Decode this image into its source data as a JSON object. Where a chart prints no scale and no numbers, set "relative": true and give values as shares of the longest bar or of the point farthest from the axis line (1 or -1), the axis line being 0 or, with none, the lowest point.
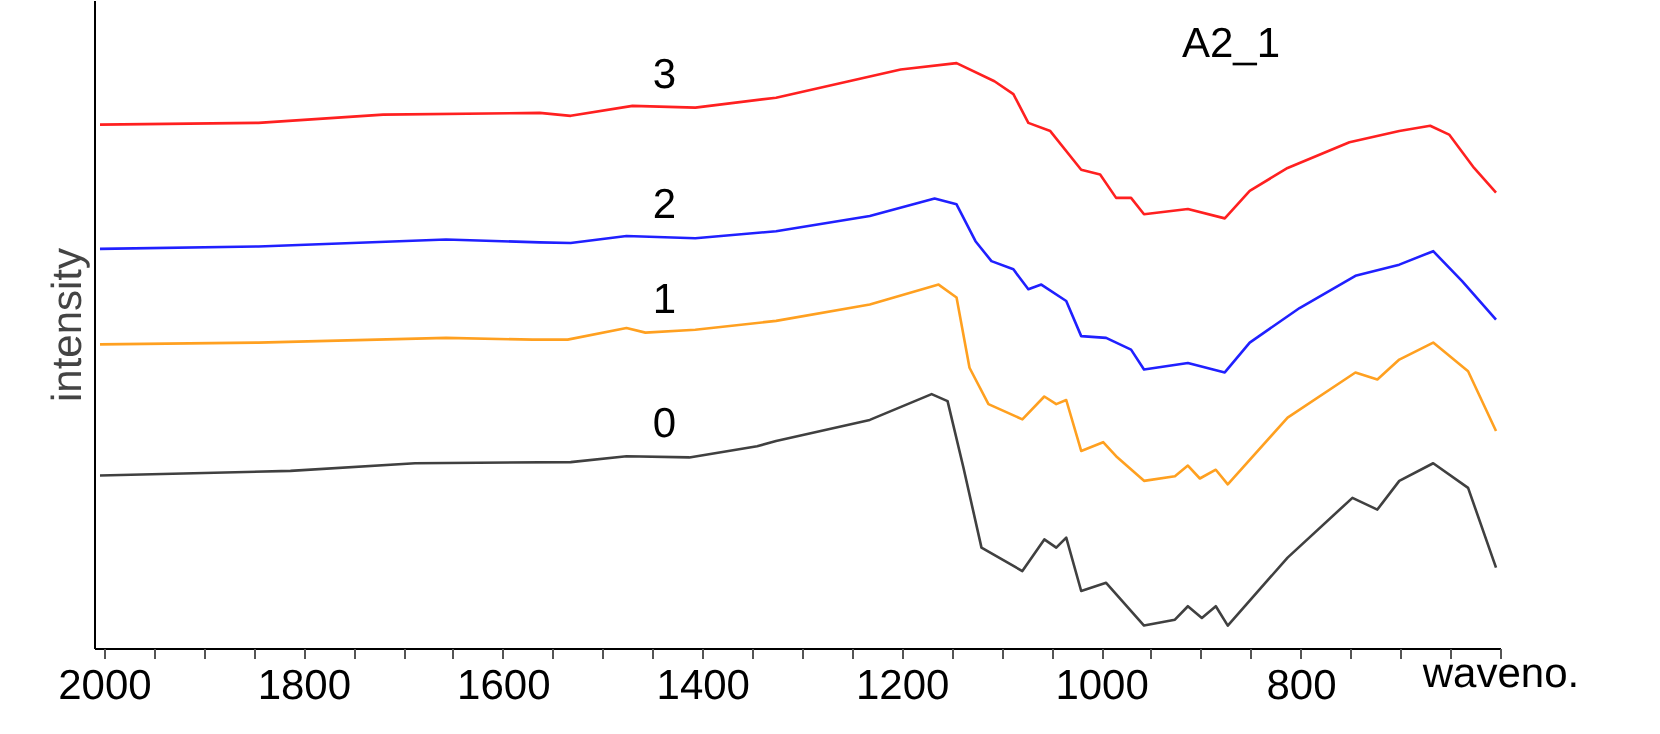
{
  "chart_data": {
    "type": "line",
    "relative": true,
    "ylabel": "intensity",
    "xlabel": "waveno.",
    "annotations": [
      "A2_1"
    ],
    "xlim": [
      2010,
      600
    ],
    "xticks": [
      2000,
      {
        "value": 1950,
        "label": null
      },
      {
        "value": 1900,
        "label": null
      },
      {
        "value": 1850,
        "label": null
      },
      1800,
      {
        "value": 1750,
        "label": null
      },
      {
        "value": 1700,
        "label": null
      },
      {
        "value": 1650,
        "label": null
      },
      1600,
      {
        "value": 1550,
        "label": null
      },
      {
        "value": 1500,
        "label": null
      },
      {
        "value": 1450,
        "label": null
      },
      1400,
      {
        "value": 1350,
        "label": null
      },
      {
        "value": 1300,
        "label": null
      },
      {
        "value": 1250,
        "label": null
      },
      1200,
      {
        "value": 1150,
        "label": null
      },
      {
        "value": 1100,
        "label": null
      },
      {
        "value": 1050,
        "label": null
      },
      1000,
      {
        "value": 950,
        "label": null
      },
      {
        "value": 900,
        "label": null
      },
      {
        "value": 850,
        "label": null
      },
      800,
      {
        "value": 750,
        "label": null
      },
      {
        "value": 700,
        "label": null
      },
      {
        "value": 650,
        "label": null
      },
      {
        "value": 600,
        "label": null
      }
    ],
    "grid": false,
    "legend": false,
    "series": [
      {
        "name": "3",
        "color": "#ff2020",
        "x": [
          2005,
          1846,
          1721,
          1564,
          1533,
          1471,
          1408,
          1327,
          1202,
          1146,
          1108,
          1089,
          1074,
          1052,
          1021,
          1002,
          986,
          971,
          958,
          914,
          877,
          852,
          814,
          752,
          702,
          671,
          652,
          627,
          605
        ],
        "values": [
          0.895,
          0.898,
          0.912,
          0.915,
          0.91,
          0.927,
          0.924,
          0.941,
          0.989,
          1.0,
          0.969,
          0.947,
          0.898,
          0.884,
          0.818,
          0.81,
          0.77,
          0.77,
          0.742,
          0.751,
          0.735,
          0.782,
          0.821,
          0.865,
          0.884,
          0.893,
          0.878,
          0.821,
          0.779
        ]
      },
      {
        "name": "2",
        "color": "#2020ff",
        "x": [
          2005,
          1846,
          1658,
          1564,
          1533,
          1477,
          1408,
          1327,
          1233,
          1168,
          1146,
          1127,
          1111,
          1089,
          1074,
          1061,
          1036,
          1021,
          996,
          971,
          958,
          914,
          877,
          852,
          802,
          746,
          702,
          668,
          639,
          605
        ],
        "values": [
          0.683,
          0.687,
          0.699,
          0.694,
          0.693,
          0.705,
          0.701,
          0.713,
          0.739,
          0.769,
          0.759,
          0.696,
          0.662,
          0.648,
          0.614,
          0.622,
          0.594,
          0.534,
          0.531,
          0.511,
          0.477,
          0.488,
          0.472,
          0.523,
          0.582,
          0.637,
          0.656,
          0.679,
          0.628,
          0.562
        ]
      },
      {
        "name": "1",
        "color": "#ffa020",
        "x": [
          2005,
          1846,
          1658,
          1571,
          1536,
          1477,
          1458,
          1408,
          1327,
          1233,
          1164,
          1146,
          1133,
          1114,
          1080,
          1058,
          1046,
          1036,
          1021,
          999,
          986,
          958,
          927,
          914,
          902,
          886,
          874,
          814,
          746,
          724,
          702,
          668,
          633,
          605
        ],
        "values": [
          0.52,
          0.523,
          0.531,
          0.528,
          0.528,
          0.548,
          0.54,
          0.545,
          0.56,
          0.588,
          0.622,
          0.6,
          0.48,
          0.418,
          0.392,
          0.431,
          0.418,
          0.425,
          0.338,
          0.353,
          0.329,
          0.287,
          0.295,
          0.313,
          0.291,
          0.306,
          0.281,
          0.395,
          0.472,
          0.46,
          0.494,
          0.523,
          0.474,
          0.372
        ]
      },
      {
        "name": "0",
        "color": "#404040",
        "x": [
          2005,
          1814,
          1689,
          1533,
          1477,
          1414,
          1346,
          1327,
          1233,
          1171,
          1155,
          1139,
          1121,
          1080,
          1058,
          1046,
          1036,
          1021,
          996,
          958,
          927,
          914,
          900,
          886,
          874,
          814,
          749,
          724,
          702,
          668,
          633,
          605
        ],
        "values": [
          0.296,
          0.304,
          0.317,
          0.319,
          0.329,
          0.327,
          0.346,
          0.355,
          0.391,
          0.435,
          0.423,
          0.309,
          0.173,
          0.133,
          0.187,
          0.173,
          0.19,
          0.099,
          0.113,
          0.04,
          0.05,
          0.073,
          0.053,
          0.073,
          0.04,
          0.156,
          0.258,
          0.238,
          0.287,
          0.317,
          0.275,
          0.139
        ]
      }
    ]
  }
}
